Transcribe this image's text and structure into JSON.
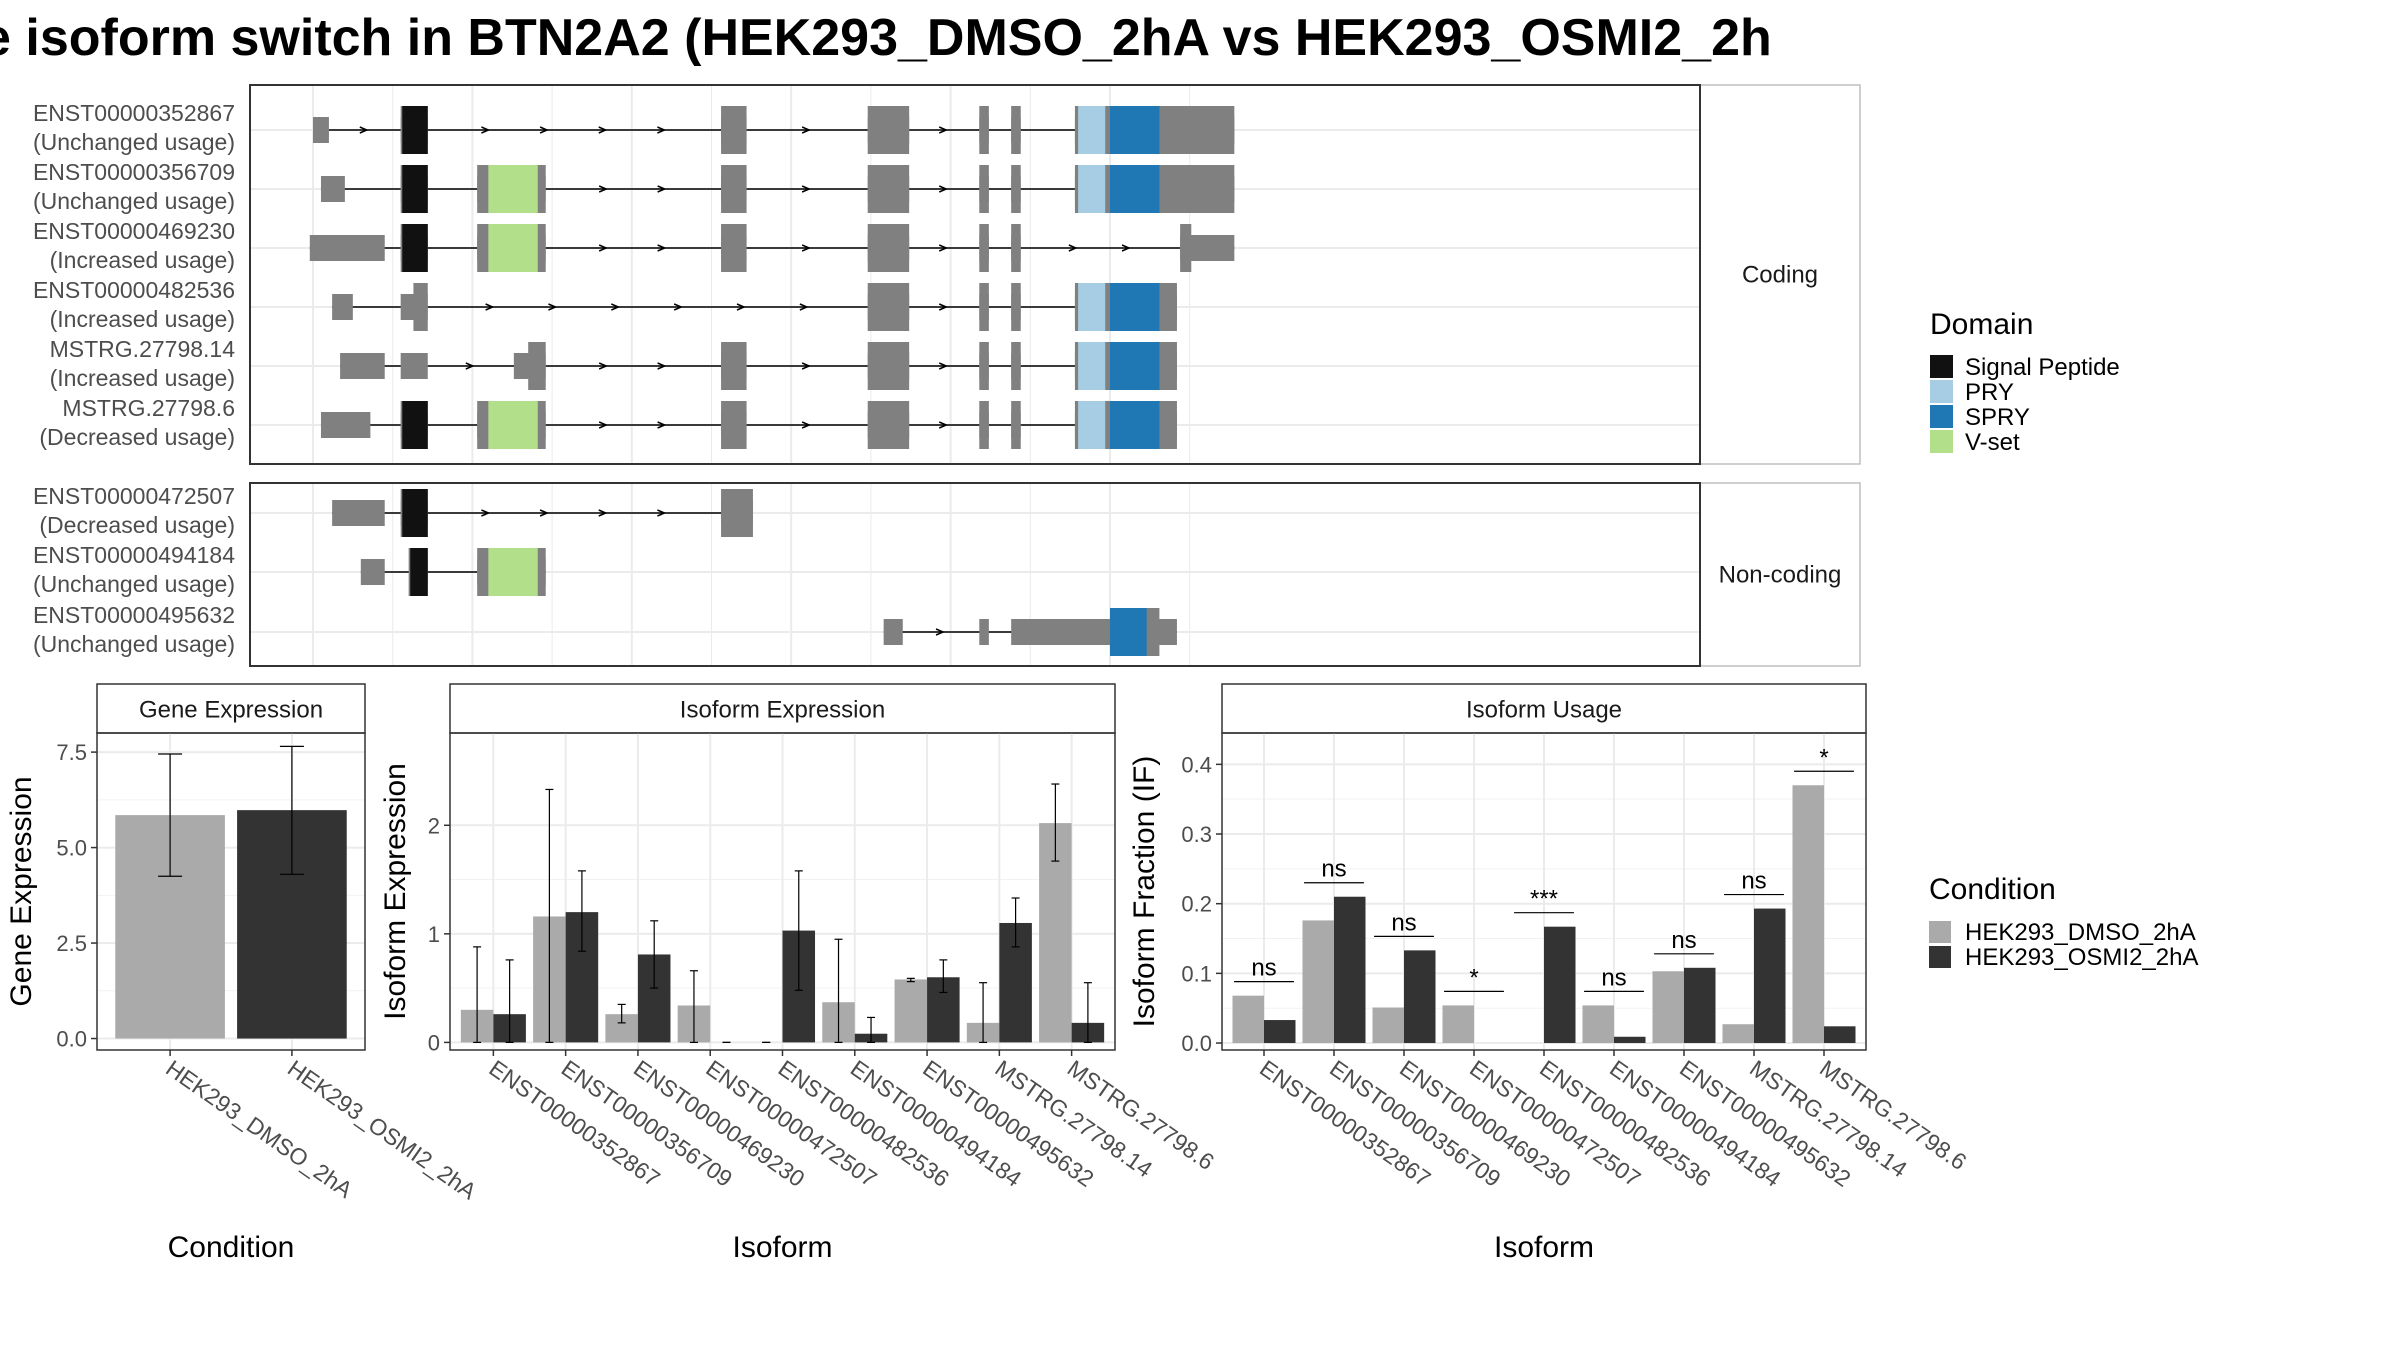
{
  "title": "e isoform switch in BTN2A2 (HEK293_DMSO_2hA vs HEK293_OSMI2_2h",
  "structure": {
    "facets": [
      "Coding",
      "Non-coding"
    ],
    "legend_title": "Domain",
    "legend": [
      {
        "name": "Signal Peptide",
        "color": "#111111"
      },
      {
        "name": "PRY",
        "color": "#a6cde3"
      },
      {
        "name": "SPRY",
        "color": "#1f78b4"
      },
      {
        "name": "V-set",
        "color": "#b2df8a"
      }
    ],
    "exon_color": "#808080",
    "transcripts": [
      {
        "id": "ENST00000352867",
        "usage": "(Unchanged usage)",
        "group": "Coding",
        "exons": [
          [
            0.0,
            0.1
          ],
          [
            0.55,
            0.72
          ],
          [
            2.56,
            2.72
          ],
          [
            3.48,
            3.74
          ],
          [
            4.18,
            4.24
          ],
          [
            4.38,
            4.44
          ],
          [
            4.78,
            5.78
          ]
        ],
        "coding": [
          [
            0.55,
            0.72
          ],
          [
            2.56,
            2.72
          ],
          [
            3.48,
            3.74
          ],
          [
            4.18,
            4.24
          ],
          [
            4.38,
            4.44
          ],
          [
            4.78,
            5.78
          ]
        ],
        "domains": [
          {
            "name": "Signal Peptide",
            "range": [
              0.56,
              0.72
            ]
          },
          {
            "name": "PRY",
            "range": [
              4.8,
              4.97
            ]
          },
          {
            "name": "SPRY",
            "range": [
              5.0,
              5.31
            ]
          }
        ]
      },
      {
        "id": "ENST00000356709",
        "usage": "(Unchanged usage)",
        "group": "Coding",
        "exons": [
          [
            0.05,
            0.2
          ],
          [
            0.55,
            0.72
          ],
          [
            1.03,
            1.46
          ],
          [
            2.56,
            2.72
          ],
          [
            3.48,
            3.74
          ],
          [
            4.18,
            4.24
          ],
          [
            4.38,
            4.44
          ],
          [
            4.78,
            5.78
          ]
        ],
        "coding": [
          [
            0.55,
            0.72
          ],
          [
            1.03,
            1.46
          ],
          [
            2.56,
            2.72
          ],
          [
            3.48,
            3.74
          ],
          [
            4.18,
            4.24
          ],
          [
            4.38,
            4.44
          ],
          [
            4.78,
            5.78
          ]
        ],
        "domains": [
          {
            "name": "Signal Peptide",
            "range": [
              0.56,
              0.72
            ]
          },
          {
            "name": "V-set",
            "range": [
              1.1,
              1.41
            ]
          },
          {
            "name": "PRY",
            "range": [
              4.8,
              4.97
            ]
          },
          {
            "name": "SPRY",
            "range": [
              5.0,
              5.31
            ]
          }
        ]
      },
      {
        "id": "ENST00000469230",
        "usage": "(Increased usage)",
        "group": "Coding",
        "exons": [
          [
            -0.02,
            0.45
          ],
          [
            0.55,
            0.72
          ],
          [
            1.03,
            1.46
          ],
          [
            2.56,
            2.72
          ],
          [
            3.48,
            3.74
          ],
          [
            4.18,
            4.24
          ],
          [
            4.38,
            4.44
          ],
          [
            5.44,
            5.78
          ]
        ],
        "coding": [
          [
            0.55,
            0.72
          ],
          [
            1.03,
            1.46
          ],
          [
            2.56,
            2.72
          ],
          [
            3.48,
            3.74
          ],
          [
            4.18,
            4.24
          ],
          [
            4.38,
            4.44
          ],
          [
            5.44,
            5.51
          ]
        ],
        "domains": [
          {
            "name": "Signal Peptide",
            "range": [
              0.56,
              0.72
            ]
          },
          {
            "name": "V-set",
            "range": [
              1.1,
              1.41
            ]
          }
        ]
      },
      {
        "id": "ENST00000482536",
        "usage": "(Increased usage)",
        "group": "Coding",
        "exons": [
          [
            0.12,
            0.25
          ],
          [
            0.55,
            0.72
          ],
          [
            3.48,
            3.74
          ],
          [
            4.18,
            4.24
          ],
          [
            4.38,
            4.44
          ],
          [
            4.78,
            5.42
          ]
        ],
        "coding": [
          [
            0.63,
            0.72
          ],
          [
            3.48,
            3.74
          ],
          [
            4.18,
            4.24
          ],
          [
            4.38,
            4.44
          ],
          [
            4.78,
            5.42
          ]
        ],
        "domains": [
          {
            "name": "PRY",
            "range": [
              4.8,
              4.97
            ]
          },
          {
            "name": "SPRY",
            "range": [
              5.0,
              5.31
            ]
          }
        ]
      },
      {
        "id": "MSTRG.27798.14",
        "usage": "(Increased usage)",
        "group": "Coding",
        "exons": [
          [
            0.17,
            0.45
          ],
          [
            0.55,
            0.72
          ],
          [
            1.26,
            1.46
          ],
          [
            2.56,
            2.72
          ],
          [
            3.48,
            3.74
          ],
          [
            4.18,
            4.24
          ],
          [
            4.38,
            4.44
          ],
          [
            4.78,
            5.42
          ]
        ],
        "coding": [
          [
            1.35,
            1.46
          ],
          [
            2.56,
            2.72
          ],
          [
            3.48,
            3.74
          ],
          [
            4.18,
            4.24
          ],
          [
            4.38,
            4.44
          ],
          [
            4.78,
            5.42
          ]
        ],
        "domains": [
          {
            "name": "PRY",
            "range": [
              4.8,
              4.97
            ]
          },
          {
            "name": "SPRY",
            "range": [
              5.0,
              5.31
            ]
          }
        ]
      },
      {
        "id": "MSTRG.27798.6",
        "usage": "(Decreased usage)",
        "group": "Coding",
        "exons": [
          [
            0.05,
            0.36
          ],
          [
            0.55,
            0.72
          ],
          [
            1.03,
            1.46
          ],
          [
            2.56,
            2.72
          ],
          [
            3.48,
            3.74
          ],
          [
            4.18,
            4.24
          ],
          [
            4.38,
            4.44
          ],
          [
            4.78,
            5.42
          ]
        ],
        "coding": [
          [
            0.55,
            0.72
          ],
          [
            1.03,
            1.46
          ],
          [
            2.56,
            2.72
          ],
          [
            3.48,
            3.74
          ],
          [
            4.18,
            4.24
          ],
          [
            4.38,
            4.44
          ],
          [
            4.78,
            5.42
          ]
        ],
        "domains": [
          {
            "name": "Signal Peptide",
            "range": [
              0.56,
              0.72
            ]
          },
          {
            "name": "V-set",
            "range": [
              1.1,
              1.41
            ]
          },
          {
            "name": "PRY",
            "range": [
              4.8,
              4.97
            ]
          },
          {
            "name": "SPRY",
            "range": [
              5.0,
              5.31
            ]
          }
        ]
      },
      {
        "id": "ENST00000472507",
        "usage": "(Decreased usage)",
        "group": "Non-coding",
        "exons": [
          [
            0.12,
            0.45
          ],
          [
            0.55,
            0.72
          ],
          [
            2.56,
            2.76
          ]
        ],
        "coding": [
          [
            0.55,
            0.72
          ],
          [
            2.56,
            2.76
          ]
        ],
        "domains": [
          {
            "name": "Signal Peptide",
            "range": [
              0.56,
              0.72
            ]
          }
        ]
      },
      {
        "id": "ENST00000494184",
        "usage": "(Unchanged usage)",
        "group": "Non-coding",
        "exons": [
          [
            0.3,
            0.45
          ],
          [
            0.67,
            0.72
          ],
          [
            1.03,
            1.46
          ]
        ],
        "coding": [
          [
            0.6,
            0.72
          ],
          [
            1.03,
            1.46
          ]
        ],
        "domains": [
          {
            "name": "Signal Peptide",
            "range": [
              0.61,
              0.72
            ]
          },
          {
            "name": "V-set",
            "range": [
              1.1,
              1.41
            ]
          }
        ]
      },
      {
        "id": "ENST00000495632",
        "usage": "(Unchanged usage)",
        "group": "Non-coding",
        "exons": [
          [
            3.58,
            3.7
          ],
          [
            4.18,
            4.24
          ],
          [
            4.38,
            5.42
          ]
        ],
        "coding": [
          [
            5.0,
            5.31
          ]
        ],
        "domains": [
          {
            "name": "SPRY",
            "range": [
              5.0,
              5.23
            ]
          }
        ]
      }
    ]
  },
  "chart_data": [
    {
      "type": "bar",
      "title": "Gene Expression",
      "xlabel": "Condition",
      "ylabel": "Gene Expression",
      "categories": [
        "HEK293_DMSO_2hA",
        "HEK293_OSMI2_2hA"
      ],
      "values": [
        5.85,
        5.98
      ],
      "error": [
        [
          4.25,
          7.45
        ],
        [
          4.3,
          7.65
        ]
      ],
      "colors": [
        "#aaaaaa",
        "#333333"
      ],
      "ylim": [
        -0.3,
        8.0
      ],
      "yticks": [
        0.0,
        2.5,
        5.0,
        7.5
      ],
      "ytick_labels": [
        "0.0",
        "2.5",
        "5.0",
        "7.5"
      ]
    },
    {
      "type": "bar",
      "title": "Isoform Expression",
      "xlabel": "Isoform",
      "ylabel": "Isoform Expression",
      "categories": [
        "ENST00000352867",
        "ENST00000356709",
        "ENST00000469230",
        "ENST00000472507",
        "ENST00000482536",
        "ENST00000494184",
        "ENST00000495632",
        "MSTRG.27798.14",
        "MSTRG.27798.6"
      ],
      "series": [
        {
          "name": "HEK293_DMSO_2hA",
          "color": "#aaaaaa",
          "values": [
            0.3,
            1.16,
            0.26,
            0.34,
            0.0,
            0.37,
            0.58,
            0.18,
            2.02
          ],
          "error": [
            [
              0.0,
              0.88
            ],
            [
              0.0,
              2.33
            ],
            [
              0.18,
              0.35
            ],
            [
              0.0,
              0.66
            ],
            [
              0.0,
              0.0
            ],
            [
              0.0,
              0.95
            ],
            [
              0.56,
              0.59
            ],
            [
              0.0,
              0.55
            ],
            [
              1.67,
              2.38
            ]
          ]
        },
        {
          "name": "HEK293_OSMI2_2hA",
          "color": "#333333",
          "values": [
            0.26,
            1.2,
            0.81,
            0.0,
            1.03,
            0.08,
            0.6,
            1.1,
            0.18
          ],
          "error": [
            [
              0.0,
              0.76
            ],
            [
              0.84,
              1.58
            ],
            [
              0.5,
              1.12
            ],
            [
              0.0,
              0.0
            ],
            [
              0.48,
              1.58
            ],
            [
              0.0,
              0.23
            ],
            [
              0.46,
              0.76
            ],
            [
              0.88,
              1.33
            ],
            [
              0.0,
              0.55
            ]
          ]
        }
      ],
      "ylim": [
        -0.07,
        2.85
      ],
      "yticks": [
        0,
        1,
        2
      ],
      "ytick_labels": [
        "0",
        "1",
        "2"
      ]
    },
    {
      "type": "bar",
      "title": "Isoform Usage",
      "xlabel": "Isoform",
      "ylabel": "Isoform Fraction (IF)",
      "categories": [
        "ENST00000352867",
        "ENST00000356709",
        "ENST00000469230",
        "ENST00000472507",
        "ENST00000482536",
        "ENST00000494184",
        "ENST00000495632",
        "MSTRG.27798.14",
        "MSTRG.27798.6"
      ],
      "series": [
        {
          "name": "HEK293_DMSO_2hA",
          "color": "#aaaaaa",
          "values": [
            0.068,
            0.176,
            0.051,
            0.054,
            0.0,
            0.054,
            0.103,
            0.027,
            0.37
          ]
        },
        {
          "name": "HEK293_OSMI2_2hA",
          "color": "#333333",
          "values": [
            0.033,
            0.21,
            0.133,
            0.0,
            0.167,
            0.009,
            0.108,
            0.193,
            0.024
          ]
        }
      ],
      "significance": [
        "ns",
        "ns",
        "ns",
        "*",
        "***",
        "ns",
        "ns",
        "ns",
        "*"
      ],
      "ylim": [
        -0.01,
        0.445
      ],
      "yticks": [
        0.0,
        0.1,
        0.2,
        0.3,
        0.4
      ],
      "ytick_labels": [
        "0.0",
        "0.1",
        "0.2",
        "0.3",
        "0.4"
      ]
    }
  ],
  "condition_legend": {
    "title": "Condition",
    "items": [
      {
        "name": "HEK293_DMSO_2hA",
        "color": "#aaaaaa"
      },
      {
        "name": "HEK293_OSMI2_2hA",
        "color": "#333333"
      }
    ]
  }
}
